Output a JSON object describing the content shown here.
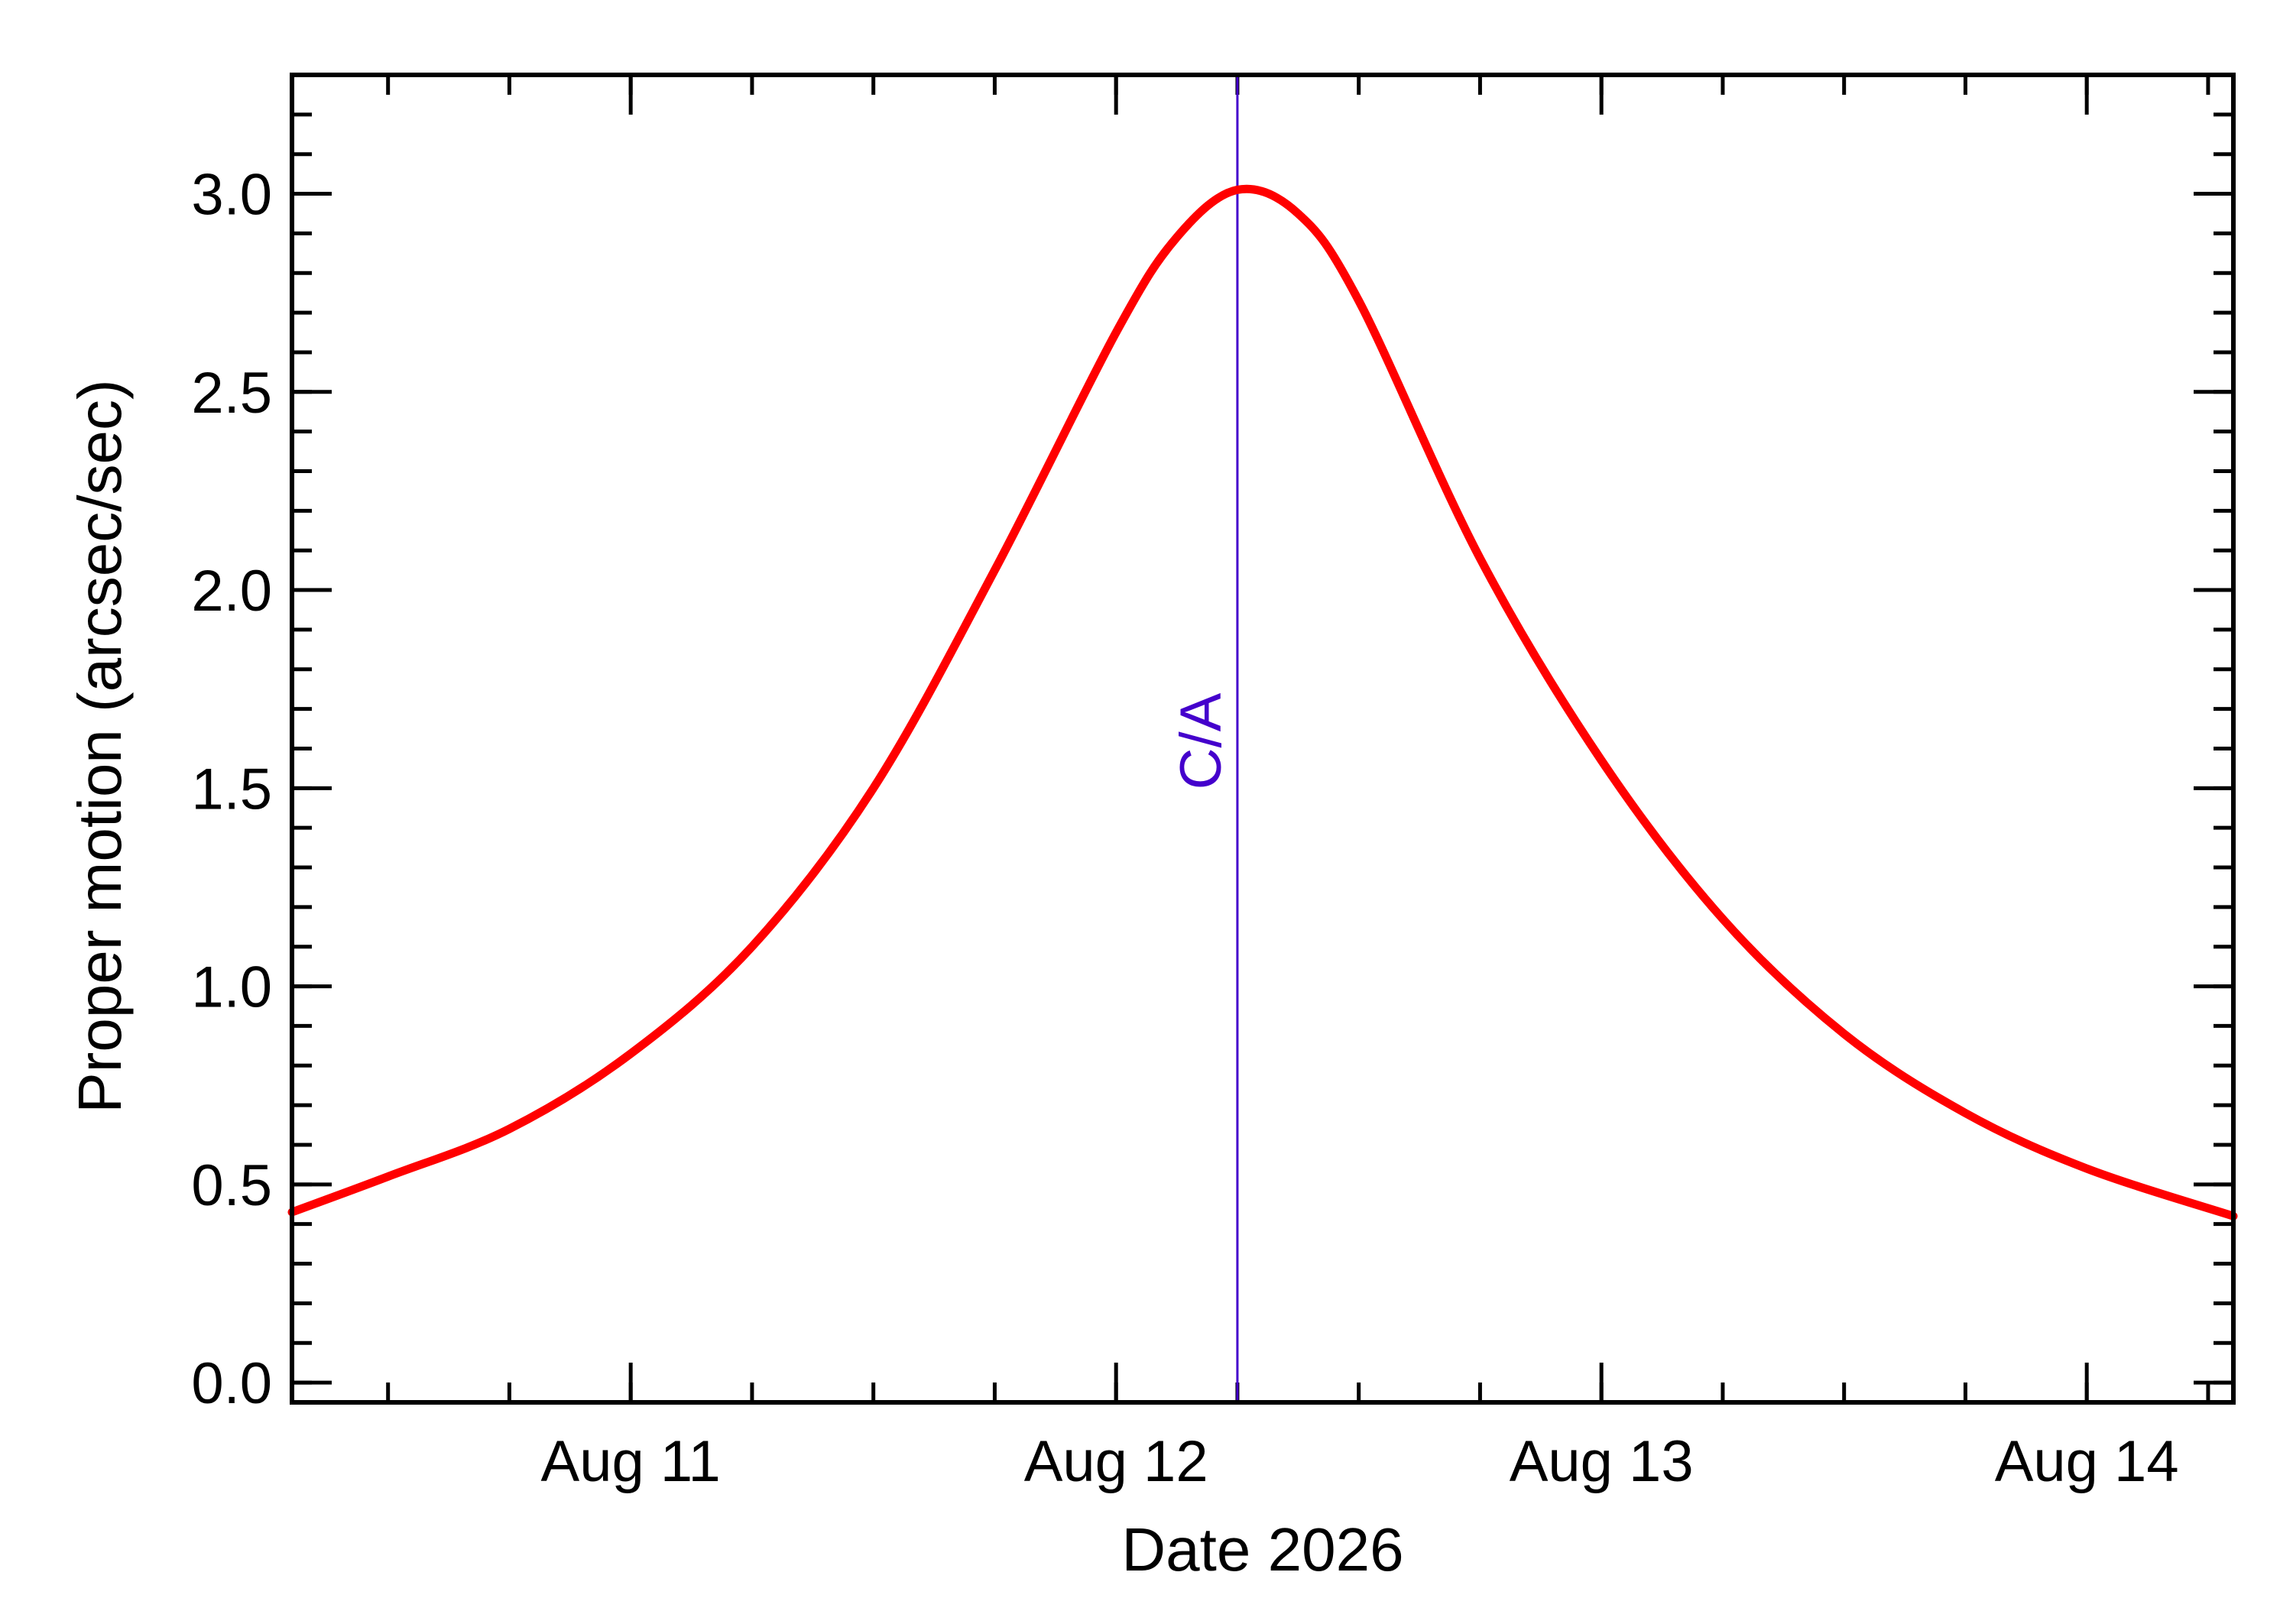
{
  "chart_data": {
    "type": "line",
    "title": "",
    "xlabel": "Date 2026",
    "ylabel": "Proper motion (arcsec/sec)",
    "xlim": [
      "2026-08-10 07:15",
      "2026-08-14 07:15"
    ],
    "ylim": [
      -0.05,
      3.3
    ],
    "x_ticks": [
      {
        "date": "2026-08-11",
        "label": "Aug 11"
      },
      {
        "date": "2026-08-12",
        "label": "Aug 12"
      },
      {
        "date": "2026-08-13",
        "label": "Aug 13"
      },
      {
        "date": "2026-08-14",
        "label": "Aug 14"
      }
    ],
    "x_minor_tick_hours": 6,
    "y_ticks": [
      {
        "value": 0.0,
        "label": "0.0"
      },
      {
        "value": 0.5,
        "label": "0.5"
      },
      {
        "value": 1.0,
        "label": "1.0"
      },
      {
        "value": 1.5,
        "label": "1.5"
      },
      {
        "value": 2.0,
        "label": "2.0"
      },
      {
        "value": 2.5,
        "label": "2.5"
      },
      {
        "value": 3.0,
        "label": "3.0"
      }
    ],
    "y_minor_step": 0.1,
    "grid": false,
    "series": [
      {
        "color": "#ff0000",
        "points": [
          {
            "x": "2026-08-10 07:15",
            "y": 0.43
          },
          {
            "x": "2026-08-10 12:00",
            "y": 0.52
          },
          {
            "x": "2026-08-10 18:00",
            "y": 0.64
          },
          {
            "x": "2026-08-11 00:00",
            "y": 0.83
          },
          {
            "x": "2026-08-11 06:00",
            "y": 1.1
          },
          {
            "x": "2026-08-11 12:00",
            "y": 1.5
          },
          {
            "x": "2026-08-11 18:00",
            "y": 2.05
          },
          {
            "x": "2026-08-12 00:00",
            "y": 2.65
          },
          {
            "x": "2026-08-12 03:00",
            "y": 2.89
          },
          {
            "x": "2026-08-12 06:00",
            "y": 3.01
          },
          {
            "x": "2026-08-12 09:00",
            "y": 2.95
          },
          {
            "x": "2026-08-12 12:00",
            "y": 2.73
          },
          {
            "x": "2026-08-12 18:00",
            "y": 2.08
          },
          {
            "x": "2026-08-13 00:00",
            "y": 1.57
          },
          {
            "x": "2026-08-13 06:00",
            "y": 1.17
          },
          {
            "x": "2026-08-13 12:00",
            "y": 0.88
          },
          {
            "x": "2026-08-13 18:00",
            "y": 0.68
          },
          {
            "x": "2026-08-14 00:00",
            "y": 0.54
          },
          {
            "x": "2026-08-14 07:15",
            "y": 0.42
          }
        ]
      }
    ],
    "annotations": [
      {
        "type": "vline",
        "x": "2026-08-12 06:00",
        "label": "C/A",
        "color": "#4400cc"
      }
    ]
  }
}
